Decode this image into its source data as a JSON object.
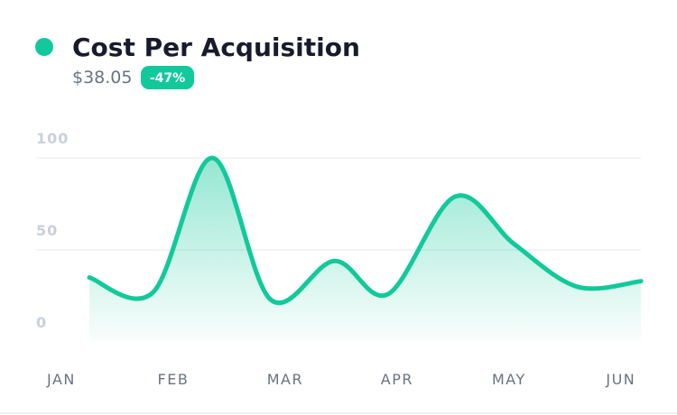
{
  "chart_data": {
    "type": "line",
    "title": "Cost Per Acquisition",
    "value": "$38.05",
    "change": "-47%",
    "x": [
      0.25,
      0.82,
      1.35,
      1.87,
      2.44,
      2.92,
      3.52,
      4.05,
      4.61,
      5.18
    ],
    "values": [
      35,
      27,
      100,
      23,
      44,
      26,
      79,
      53,
      30,
      33
    ],
    "color": "#12c99b",
    "xlim": [
      -0.25,
      5.3
    ],
    "xticks": [
      {
        "value": 0,
        "label": "JAN"
      },
      {
        "value": 1,
        "label": "FEB"
      },
      {
        "value": 2,
        "label": "MAR"
      },
      {
        "value": 3,
        "label": "APR"
      },
      {
        "value": 4,
        "label": "MAY"
      },
      {
        "value": 5,
        "label": "JUN"
      }
    ],
    "ylim": [
      0,
      100
    ],
    "yticks": [
      0,
      50,
      100
    ],
    "grid": true
  }
}
